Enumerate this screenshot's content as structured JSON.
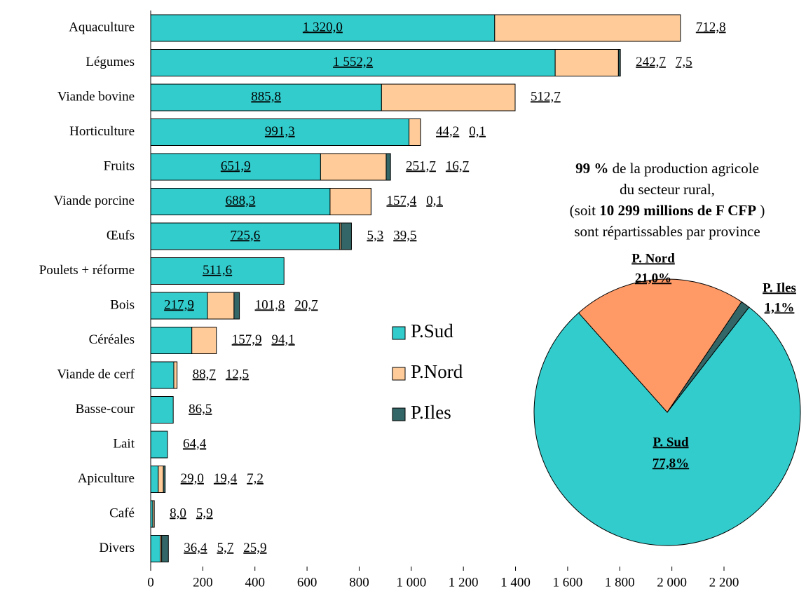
{
  "chart_data": [
    {
      "type": "bar",
      "categories": [
        "Aquaculture",
        "Légumes",
        "Viande bovine",
        "Horticulture",
        "Fruits",
        "Viande porcine",
        "Œufs",
        "Poulets + réforme",
        "Bois",
        "Céréales",
        "Viande de cerf",
        "Basse-cour",
        "Lait",
        "Apiculture",
        "Café",
        "Divers"
      ],
      "series": [
        {
          "name": "P.Sud",
          "color": "#33cccc",
          "label_color": "#000000",
          "values": [
            1320.0,
            1552.2,
            885.8,
            991.3,
            651.9,
            688.3,
            725.6,
            511.6,
            217.9,
            157.9,
            88.7,
            86.5,
            64.4,
            29.0,
            8.0,
            36.4
          ],
          "value_labels": [
            "1 320,0",
            "1 552,2",
            "885,8",
            "991,3",
            "651,9",
            "688,3",
            "725,6",
            "511,6",
            "217,9",
            "157,9",
            "88,7",
            "86,5",
            "64,4",
            "29,0",
            "8,0",
            "36,4"
          ]
        },
        {
          "name": "P.Nord",
          "color": "#ffcc99",
          "label_color": "#a06a30",
          "values": [
            712.8,
            242.7,
            512.7,
            44.2,
            251.7,
            157.4,
            5.3,
            null,
            101.8,
            94.1,
            12.5,
            null,
            null,
            19.4,
            5.9,
            5.7
          ],
          "value_labels": [
            "712,8",
            "242,7",
            "512,7",
            "44,2",
            "251,7",
            "157,4",
            "5,3",
            null,
            "101,8",
            "94,1",
            "12,5",
            null,
            null,
            "19,4",
            "5,9",
            "5,7"
          ]
        },
        {
          "name": "P.Iles",
          "color": "#336666",
          "label_color": "#336666",
          "values": [
            null,
            7.5,
            null,
            0.1,
            16.7,
            0.1,
            39.5,
            null,
            20.7,
            null,
            null,
            null,
            null,
            7.2,
            null,
            25.9
          ],
          "value_labels": [
            null,
            "7,5",
            null,
            "0,1",
            "16,7",
            "0,1",
            "39,5",
            null,
            "20,7",
            null,
            null,
            null,
            null,
            "7,2",
            null,
            "25,9"
          ]
        }
      ],
      "xlim": [
        0,
        2200
      ],
      "xticks": [
        0,
        200,
        400,
        600,
        800,
        {
          "value": 1000,
          "label": "1 000"
        },
        {
          "value": 1200,
          "label": "1 200"
        },
        {
          "value": 1400,
          "label": "1 400"
        },
        {
          "value": 1600,
          "label": "1 600"
        },
        {
          "value": 1800,
          "label": "1 800"
        },
        {
          "value": 2000,
          "label": "2 000"
        },
        {
          "value": 2200,
          "label": "2 200"
        }
      ],
      "stacked": true
    },
    {
      "type": "pie",
      "labels": [
        "P. Sud",
        "P. Nord",
        "P. Iles"
      ],
      "values": [
        77.8,
        21.0,
        1.1
      ],
      "value_labels": [
        "77,8%",
        "21,0%",
        "1,1%"
      ],
      "colors": [
        "#33cccc",
        "#ff9966",
        "#336666"
      ],
      "label_colors": [
        "#000000",
        "#663300",
        "#336666"
      ],
      "annotation": [
        [
          {
            "text": "99 %",
            "bold": true
          },
          {
            "text": " de la production agricole",
            "bold": false
          }
        ],
        [
          {
            "text": "du secteur rural,",
            "bold": false
          }
        ],
        [
          {
            "text": "(soit ",
            "bold": false
          },
          {
            "text": "10 299 millions de F CFP",
            "bold": true
          },
          {
            "text": " )",
            "bold": false
          }
        ],
        [
          {
            "text": "sont répartissables par province",
            "bold": false
          }
        ]
      ]
    }
  ]
}
